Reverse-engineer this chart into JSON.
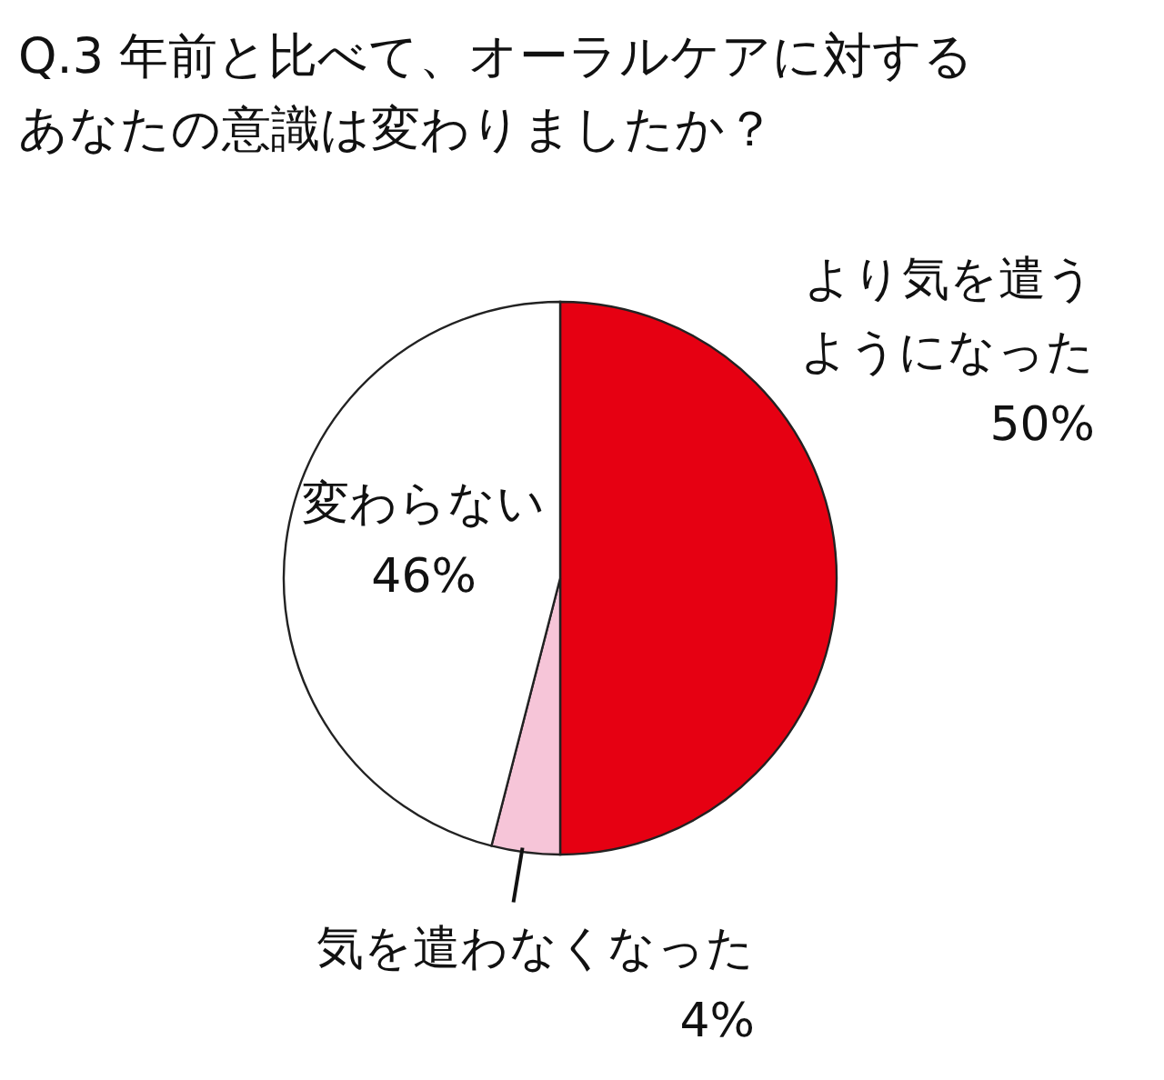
{
  "chart_data": {
    "type": "pie",
    "title": "Q.3 年前と比べて、オーラルケアに対するあなたの意識は変わりましたか？",
    "categories": [
      "より気を遣うようになった",
      "気を遣わなくなった",
      "変わらない"
    ],
    "values": [
      50,
      4,
      46
    ],
    "value_labels": [
      "50%",
      "4%",
      "46%"
    ],
    "colors": [
      "#e60012",
      "#f6c5d8",
      "#ffffff"
    ]
  }
}
